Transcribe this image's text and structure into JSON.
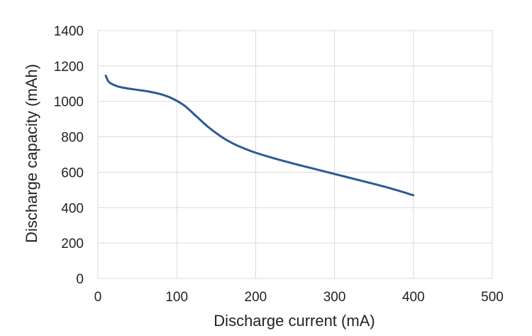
{
  "chart_data": {
    "type": "line",
    "title": "",
    "xlabel": "Discharge current (mA)",
    "ylabel": "Discharge capacity (mAh)",
    "xlim": [
      0,
      500
    ],
    "ylim": [
      0,
      1400
    ],
    "xticks": [
      0,
      100,
      200,
      300,
      400,
      500
    ],
    "yticks": [
      0,
      200,
      400,
      600,
      800,
      1000,
      1200,
      1400
    ],
    "xtick_labels": [
      "0",
      "100",
      "200",
      "300",
      "400",
      "500"
    ],
    "ytick_labels": [
      "0",
      "200",
      "400",
      "600",
      "800",
      "1000",
      "1200",
      "1400"
    ],
    "grid": true,
    "legend": "none",
    "line_color": "#2e5a94",
    "grid_color": "#d9d9d9",
    "series": [
      {
        "x": [
          10,
          13,
          17,
          25,
          35,
          50,
          65,
          80,
          95,
          110,
          125,
          140,
          155,
          170,
          185,
          200,
          230,
          260,
          300,
          340,
          370,
          400
        ],
        "y": [
          1145,
          1115,
          1100,
          1085,
          1075,
          1065,
          1055,
          1040,
          1015,
          975,
          915,
          855,
          805,
          765,
          735,
          710,
          670,
          635,
          590,
          545,
          510,
          470
        ]
      }
    ]
  }
}
